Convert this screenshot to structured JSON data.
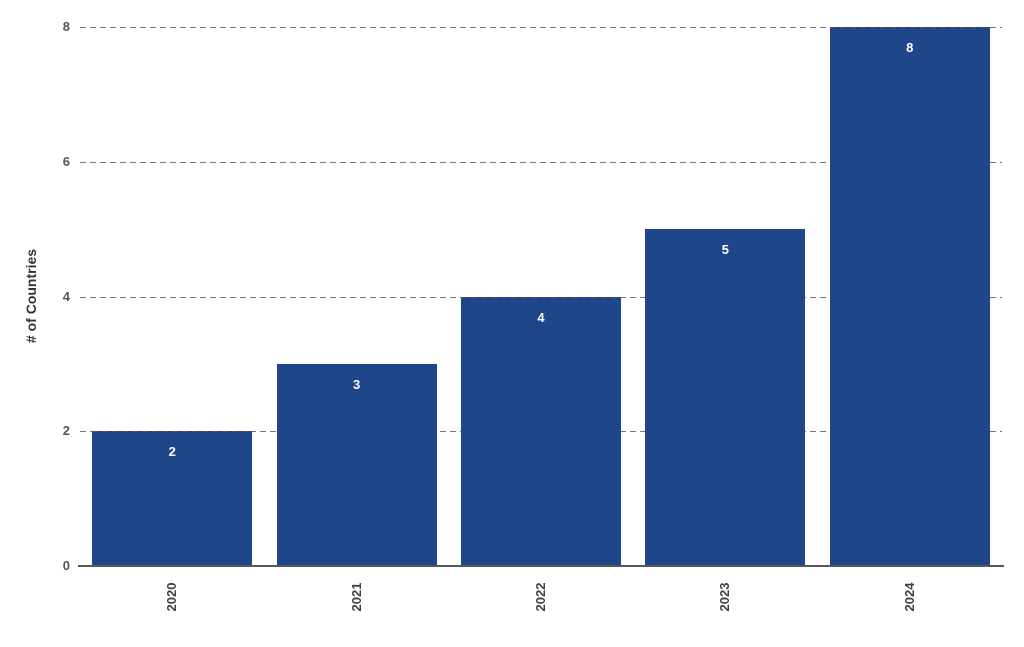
{
  "chart_data": {
    "type": "bar",
    "categories": [
      "2020",
      "2021",
      "2022",
      "2023",
      "2024"
    ],
    "values": [
      2,
      3,
      4,
      5,
      8
    ],
    "bar_labels": [
      "2",
      "3",
      "4",
      "5",
      "8"
    ],
    "title": "",
    "xlabel": "",
    "ylabel": "# of Countries",
    "ylim": [
      0,
      8
    ],
    "yticks": [
      0,
      2,
      4,
      6,
      8
    ],
    "grid": "horizontal-dashed",
    "legend": "none",
    "colors": {
      "bar": "#1F4689",
      "bar_label": "#FFFFFF",
      "gridline": "#777777",
      "axis_line": "#595959",
      "y_tick_label": "#565656",
      "x_tick_label": "#3F3F3F",
      "ylabel": "#333333",
      "background": "#FFFFFF"
    }
  }
}
